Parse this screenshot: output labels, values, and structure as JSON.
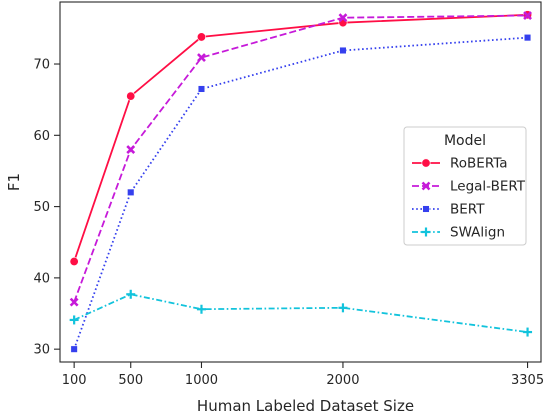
{
  "chart_data": {
    "type": "line",
    "xlabel": "Human Labeled Dataset Size",
    "ylabel": "F1",
    "x": [
      100,
      500,
      1000,
      2000,
      3305
    ],
    "x_tick_labels": [
      "100",
      "500",
      "1000",
      "2000",
      "3305"
    ],
    "y_ticks": [
      30,
      40,
      50,
      60,
      70
    ],
    "y_tick_labels": [
      "30",
      "40",
      "50",
      "60",
      "70"
    ],
    "xlim": [
      0,
      3400
    ],
    "ylim": [
      28.2,
      78.7
    ],
    "grid": false,
    "legend": {
      "title": "Model",
      "placement": "center-right"
    },
    "series": [
      {
        "name": "RoBERTa",
        "values": [
          42.3,
          65.5,
          73.8,
          75.8,
          76.9
        ],
        "color": "#ff0e45",
        "dash": "solid",
        "marker": "circle"
      },
      {
        "name": "Legal-BERT",
        "values": [
          36.6,
          58.0,
          70.9,
          76.5,
          76.8
        ],
        "color": "#c61ad9",
        "dash": "dashed",
        "marker": "x"
      },
      {
        "name": "BERT",
        "values": [
          30.0,
          52.0,
          66.5,
          71.9,
          73.7
        ],
        "color": "#3540ee",
        "dash": "dotted",
        "marker": "square"
      },
      {
        "name": "SWAlign",
        "values": [
          34.1,
          37.7,
          35.6,
          35.8,
          32.4
        ],
        "color": "#12c3dc",
        "dash": "dashdot",
        "marker": "plus"
      }
    ]
  }
}
